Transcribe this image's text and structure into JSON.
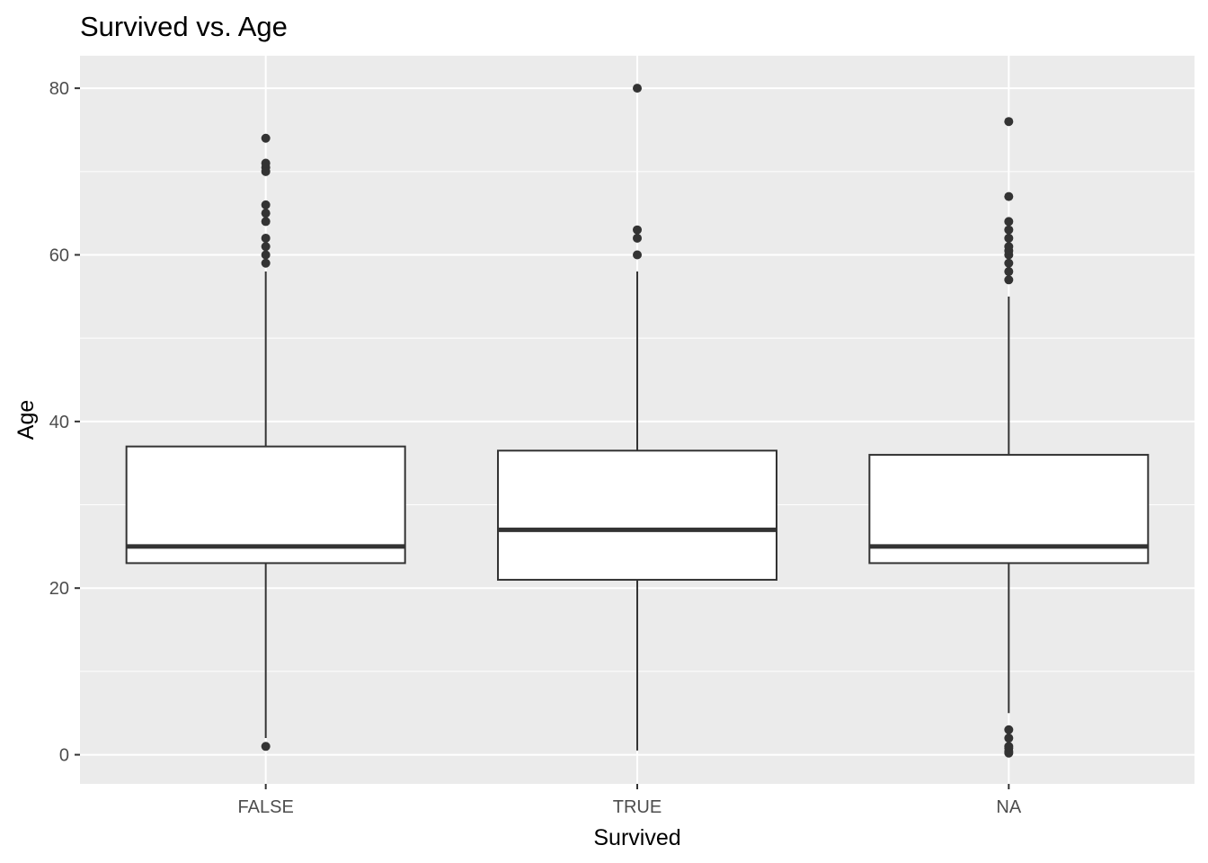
{
  "chart_data": {
    "type": "boxplot",
    "title": "Survived vs. Age",
    "xlabel": "Survived",
    "ylabel": "Age",
    "ylim": [
      -3.5,
      83.9
    ],
    "yticks": [
      0,
      20,
      40,
      60,
      80
    ],
    "ytick_labels": [
      "0",
      "20",
      "40",
      "60",
      "80"
    ],
    "grid": true,
    "panel_background": "#ebebeb",
    "box_fill": "#ffffff",
    "line_color": "#333333",
    "categories": [
      "FALSE",
      "TRUE",
      "NA"
    ],
    "boxes": [
      {
        "category": "FALSE",
        "whisker_low": 2,
        "q1": 23,
        "median": 25,
        "q3": 37,
        "whisker_high": 58,
        "outliers": [
          1,
          59,
          60,
          61,
          62,
          64,
          65,
          66,
          70,
          70.5,
          71,
          74
        ]
      },
      {
        "category": "TRUE",
        "whisker_low": 0.5,
        "q1": 21,
        "median": 27,
        "q3": 36.5,
        "whisker_high": 58,
        "outliers": [
          60,
          62,
          63,
          80
        ]
      },
      {
        "category": "NA",
        "whisker_low": 5,
        "q1": 23,
        "median": 25,
        "q3": 36,
        "whisker_high": 55,
        "outliers": [
          0.2,
          0.4,
          0.8,
          1,
          2,
          3,
          57,
          58,
          59,
          60,
          60.5,
          61,
          62,
          63,
          64,
          67,
          76
        ]
      }
    ]
  }
}
